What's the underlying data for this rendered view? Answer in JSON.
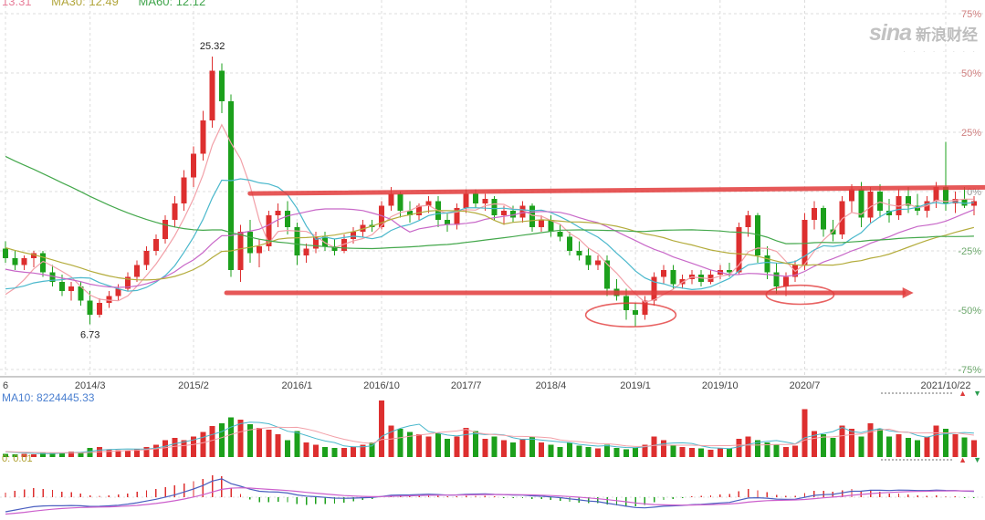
{
  "watermark": {
    "brand": "sina",
    "name": "新浪财经",
    "tagline": "· · · · · · · ·"
  },
  "price_pane": {
    "header_labels": [
      {
        "text": "13.31",
        "color": "#e87f9a"
      },
      {
        "text": "MA30: 12.49",
        "color": "#b2a63c"
      },
      {
        "text": "MA60: 12.12",
        "color": "#3fa44b"
      }
    ],
    "high_label": "25.32",
    "low_label": "6.73"
  },
  "volume_pane": {
    "header_label": "MA10: 8224445.33",
    "color": "#4a7fd0"
  },
  "macd_pane": {
    "header_label": "0: 0.01",
    "color": "#b0a030"
  },
  "controls": {
    "up_glyph": "▲",
    "down_glyph": "▼"
  },
  "chart_data": {
    "type": "candlestick",
    "panes": [
      "price",
      "volume",
      "macd"
    ],
    "y_axis": {
      "unit": "%",
      "ticks": [
        75,
        50,
        25,
        0,
        -25,
        -50,
        -75
      ],
      "range": [
        -79,
        81
      ]
    },
    "x_axis": {
      "labels": [
        {
          "text": "6",
          "i": 0
        },
        {
          "text": "2014/3",
          "i": 9
        },
        {
          "text": "2015/2",
          "i": 20
        },
        {
          "text": "2016/1",
          "i": 31
        },
        {
          "text": "2016/10",
          "i": 40
        },
        {
          "text": "2017/7",
          "i": 49
        },
        {
          "text": "2018/4",
          "i": 58
        },
        {
          "text": "2019/1",
          "i": 67
        },
        {
          "text": "2019/10",
          "i": 76
        },
        {
          "text": "2020/7",
          "i": 85
        },
        {
          "text": "2021/10/22",
          "i": 100
        }
      ]
    },
    "high_point": {
      "i": 22,
      "label": "25.32"
    },
    "low_point": {
      "i": 9,
      "label": "6.73"
    },
    "ohlc_pct": [
      [
        -24,
        -21,
        -30,
        -28
      ],
      [
        -28,
        -25,
        -33,
        -31
      ],
      [
        -31,
        -27,
        -33,
        -28
      ],
      [
        -28,
        -25,
        -32,
        -26
      ],
      [
        -26,
        -25,
        -36,
        -34
      ],
      [
        -34,
        -31,
        -40,
        -38
      ],
      [
        -38,
        -35,
        -44,
        -42
      ],
      [
        -42,
        -38,
        -46,
        -40
      ],
      [
        -40,
        -38,
        -48,
        -46
      ],
      [
        -46,
        -42,
        -56,
        -52
      ],
      [
        -52,
        -45,
        -53,
        -47
      ],
      [
        -47,
        -42,
        -49,
        -44
      ],
      [
        -44,
        -39,
        -46,
        -41
      ],
      [
        -41,
        -34,
        -42,
        -36
      ],
      [
        -36,
        -29,
        -38,
        -31
      ],
      [
        -31,
        -23,
        -33,
        -25
      ],
      [
        -25,
        -18,
        -27,
        -20
      ],
      [
        -20,
        -10,
        -22,
        -12
      ],
      [
        -12,
        -2,
        -15,
        -5
      ],
      [
        -5,
        9,
        -8,
        6
      ],
      [
        6,
        19,
        2,
        16
      ],
      [
        16,
        34,
        13,
        30
      ],
      [
        30,
        57,
        27,
        51
      ],
      [
        51,
        54,
        33,
        38
      ],
      [
        38,
        41,
        -36,
        -33
      ],
      [
        -33,
        -14,
        -38,
        -17
      ],
      [
        -17,
        -12,
        -30,
        -26
      ],
      [
        -26,
        -20,
        -32,
        -23
      ],
      [
        -23,
        -8,
        -25,
        -10
      ],
      [
        -10,
        -5,
        -15,
        -8
      ],
      [
        -8,
        -4,
        -18,
        -15
      ],
      [
        -15,
        -13,
        -31,
        -27
      ],
      [
        -27,
        -22,
        -30,
        -24
      ],
      [
        -24,
        -17,
        -26,
        -19
      ],
      [
        -19,
        -17,
        -25,
        -23
      ],
      [
        -23,
        -20,
        -27,
        -25
      ],
      [
        -25,
        -18,
        -26,
        -20
      ],
      [
        -20,
        -15,
        -22,
        -17
      ],
      [
        -17,
        -12,
        -19,
        -14
      ],
      [
        -14,
        -12,
        -17,
        -15
      ],
      [
        -15,
        -4,
        -16,
        -6
      ],
      [
        -6,
        2,
        -8,
        -1
      ],
      [
        -1,
        0,
        -11,
        -8
      ],
      [
        -8,
        -4,
        -13,
        -10
      ],
      [
        -10,
        -5,
        -12,
        -6
      ],
      [
        -6,
        -2,
        -9,
        -4
      ],
      [
        -4,
        -2,
        -15,
        -12
      ],
      [
        -12,
        -9,
        -17,
        -14
      ],
      [
        -14,
        -5,
        -16,
        -7
      ],
      [
        -7,
        1,
        -9,
        -1
      ],
      [
        -1,
        1,
        -7,
        -5
      ],
      [
        -5,
        -1,
        -8,
        -3
      ],
      [
        -3,
        -2,
        -12,
        -10
      ],
      [
        -10,
        -6,
        -14,
        -8
      ],
      [
        -8,
        -6,
        -13,
        -11
      ],
      [
        -11,
        -4,
        -13,
        -6
      ],
      [
        -6,
        -5,
        -17,
        -15
      ],
      [
        -15,
        -10,
        -17,
        -12
      ],
      [
        -12,
        -10,
        -19,
        -17
      ],
      [
        -17,
        -14,
        -21,
        -19
      ],
      [
        -19,
        -17,
        -27,
        -25
      ],
      [
        -25,
        -21,
        -29,
        -27
      ],
      [
        -27,
        -24,
        -33,
        -31
      ],
      [
        -31,
        -27,
        -33,
        -29
      ],
      [
        -29,
        -27,
        -44,
        -41
      ],
      [
        -41,
        -37,
        -46,
        -44
      ],
      [
        -44,
        -41,
        -54,
        -50
      ],
      [
        -50,
        -47,
        -57,
        -52
      ],
      [
        -52,
        -44,
        -54,
        -46
      ],
      [
        -46,
        -34,
        -48,
        -36
      ],
      [
        -36,
        -31,
        -39,
        -33
      ],
      [
        -33,
        -31,
        -41,
        -39
      ],
      [
        -39,
        -35,
        -41,
        -37
      ],
      [
        -37,
        -33,
        -39,
        -35
      ],
      [
        -35,
        -33,
        -40,
        -38
      ],
      [
        -38,
        -33,
        -39,
        -35
      ],
      [
        -35,
        -31,
        -37,
        -33
      ],
      [
        -33,
        -30,
        -36,
        -34
      ],
      [
        -34,
        -13,
        -35,
        -15
      ],
      [
        -15,
        -8,
        -19,
        -10
      ],
      [
        -10,
        -9,
        -30,
        -27
      ],
      [
        -27,
        -23,
        -37,
        -34
      ],
      [
        -34,
        -30,
        -43,
        -40
      ],
      [
        -40,
        -34,
        -44,
        -36
      ],
      [
        -36,
        -29,
        -38,
        -31
      ],
      [
        -31,
        -9,
        -33,
        -12
      ],
      [
        -12,
        -4,
        -16,
        -7
      ],
      [
        -7,
        -6,
        -19,
        -16
      ],
      [
        -16,
        -12,
        -21,
        -18
      ],
      [
        -18,
        -2,
        -20,
        -4
      ],
      [
        -4,
        3,
        -9,
        1
      ],
      [
        1,
        4,
        -15,
        -11
      ],
      [
        -11,
        2,
        -13,
        0
      ],
      [
        0,
        3,
        -11,
        -8
      ],
      [
        -8,
        -3,
        -13,
        -10
      ],
      [
        -10,
        1,
        -12,
        -2
      ],
      [
        -2,
        2,
        -9,
        -6
      ],
      [
        -6,
        -1,
        -10,
        -8
      ],
      [
        -8,
        -2,
        -11,
        -4
      ],
      [
        -4,
        4,
        -7,
        2
      ],
      [
        2,
        21,
        -8,
        -5
      ],
      [
        -5,
        0,
        -9,
        -3
      ],
      [
        -3,
        2,
        -7,
        -6
      ],
      [
        -6,
        -2,
        -10,
        -4
      ]
    ],
    "volume_rel": [
      0.06,
      0.05,
      0.06,
      0.05,
      0.08,
      0.07,
      0.08,
      0.1,
      0.09,
      0.16,
      0.18,
      0.14,
      0.12,
      0.12,
      0.14,
      0.18,
      0.22,
      0.3,
      0.34,
      0.3,
      0.36,
      0.44,
      0.55,
      0.6,
      0.7,
      0.66,
      0.58,
      0.52,
      0.48,
      0.4,
      0.3,
      0.46,
      0.26,
      0.22,
      0.18,
      0.16,
      0.16,
      0.18,
      0.22,
      0.26,
      1.0,
      0.56,
      0.5,
      0.44,
      0.4,
      0.36,
      0.42,
      0.32,
      0.36,
      0.52,
      0.46,
      0.32,
      0.36,
      0.3,
      0.26,
      0.32,
      0.36,
      0.26,
      0.22,
      0.18,
      0.26,
      0.2,
      0.18,
      0.15,
      0.22,
      0.16,
      0.14,
      0.16,
      0.22,
      0.36,
      0.3,
      0.2,
      0.18,
      0.16,
      0.15,
      0.13,
      0.16,
      0.15,
      0.32,
      0.36,
      0.3,
      0.26,
      0.22,
      0.18,
      0.2,
      0.85,
      0.46,
      0.4,
      0.34,
      0.56,
      0.5,
      0.36,
      0.6,
      0.5,
      0.36,
      0.4,
      0.34,
      0.3,
      0.36,
      0.56,
      0.5,
      0.4,
      0.35,
      0.3
    ],
    "ma_periods": {
      "price": [
        5,
        10,
        20,
        30,
        60
      ],
      "volume": [
        5,
        10
      ]
    },
    "colors": {
      "up": "#dd2f2f",
      "down": "#1ca01c",
      "price_ma": [
        "#f2a0a8",
        "#4ab8cc",
        "#c868c8",
        "#b4ac3c",
        "#44a84c"
      ],
      "volume_ma": [
        "#4ab8cc",
        "#f2a0a8"
      ],
      "macd_dif": "#4a5fc0",
      "macd_dea": "#cc5fcc",
      "annotation": "#e23b3b",
      "axis_positive": "#d08080",
      "axis_negative": "#6faa6f",
      "axis_zero": "#999999",
      "grid": "#dcdcdc"
    },
    "annotations": {
      "trendlines": [
        {
          "name": "resistance",
          "from_i": 26,
          "from_pct": -0.8,
          "to_i": 104.5,
          "to_pct": 1.8,
          "arrow": false
        },
        {
          "name": "support",
          "from_i": 23.5,
          "from_pct": -42.7,
          "to_i": 95.5,
          "to_pct": -42.7,
          "arrow": true
        }
      ],
      "ellipses": [
        {
          "ci": 66.5,
          "cpct": -52,
          "ri": 4.8,
          "rpct": 5
        },
        {
          "ci": 84.5,
          "cpct": -43.5,
          "ri": 3.6,
          "rpct": 4
        }
      ]
    }
  }
}
